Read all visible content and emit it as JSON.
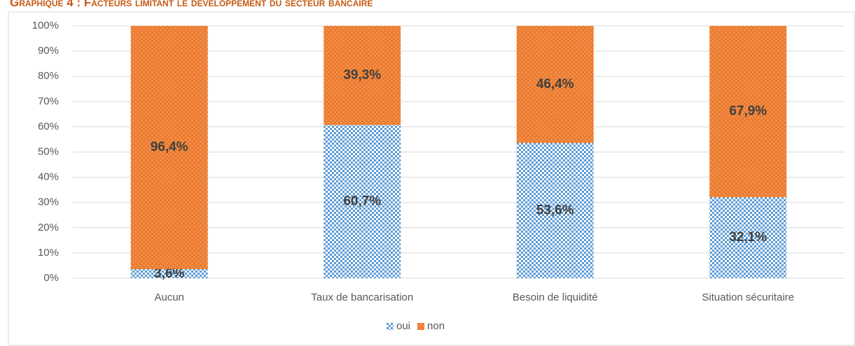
{
  "chart_data": {
    "type": "stacked_bar",
    "title": "Graphique 4 : Facteurs limitant le développement du secteur bancaire",
    "categories": [
      "Aucun",
      "Taux de bancarisation",
      "Besoin de liquidité",
      "Situation sécuritaire"
    ],
    "series": [
      {
        "name": "oui",
        "color": "#5b9bd5",
        "values": [
          3.6,
          60.7,
          53.6,
          32.1
        ],
        "value_labels": [
          "3,6%",
          "60,7%",
          "53,6%",
          "32,1%"
        ]
      },
      {
        "name": "non",
        "color": "#ed7d31",
        "values": [
          96.4,
          39.3,
          46.4,
          67.9
        ],
        "value_labels": [
          "96,4%",
          "39,3%",
          "46,4%",
          "67,9%"
        ]
      }
    ],
    "ylim": [
      0,
      100
    ],
    "yticks": [
      {
        "value": 0,
        "label": "0%"
      },
      {
        "value": 10,
        "label": "10%"
      },
      {
        "value": 20,
        "label": "20%"
      },
      {
        "value": 30,
        "label": "30%"
      },
      {
        "value": 40,
        "label": "40%"
      },
      {
        "value": 50,
        "label": "50%"
      },
      {
        "value": 60,
        "label": "60%"
      },
      {
        "value": 70,
        "label": "70%"
      },
      {
        "value": 80,
        "label": "80%"
      },
      {
        "value": 90,
        "label": "90%"
      },
      {
        "value": 100,
        "label": "100%"
      }
    ],
    "grid": true,
    "legend": "bottom"
  }
}
